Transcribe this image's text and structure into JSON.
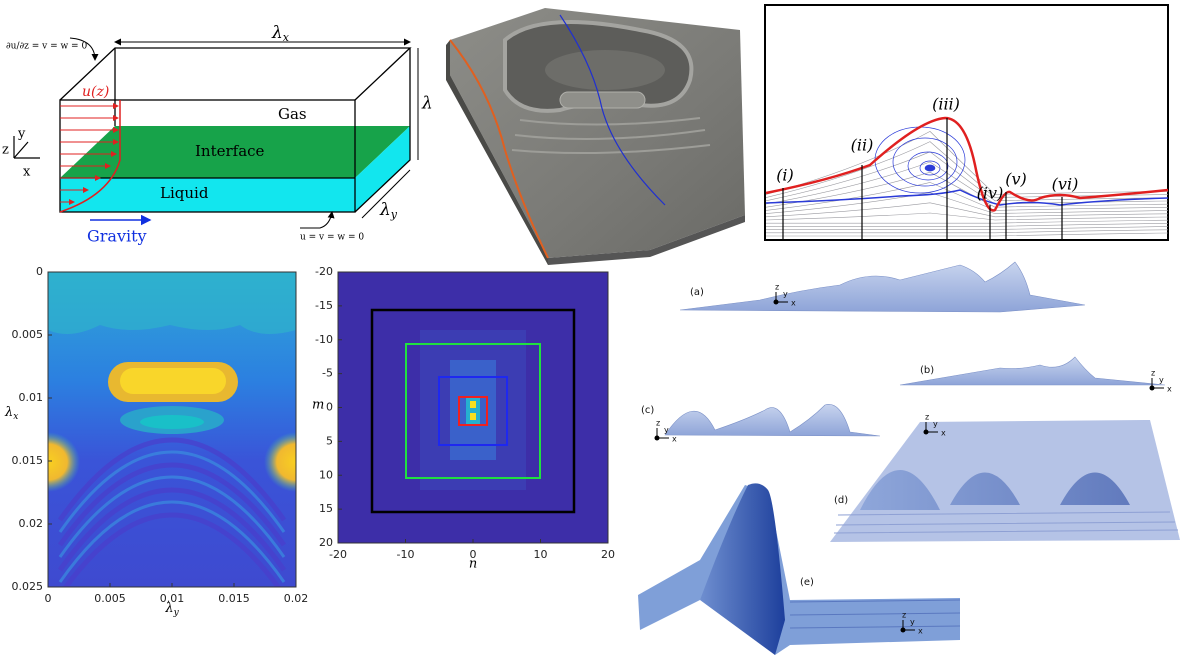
{
  "schematic": {
    "top_bc": "∂u/∂z = v = w = 0",
    "bottom_bc": "u = v = w = 0",
    "length_x": {
      "symbol": "λ",
      "sub": "x"
    },
    "length_y": {
      "symbol": "λ",
      "sub": "y"
    },
    "height": "λ",
    "profile": "u(z)",
    "gas": "Gas",
    "interface": "Interface",
    "liquid": "Liquid",
    "gravity": "Gravity",
    "axes": [
      "z",
      "y",
      "x"
    ]
  },
  "streamlines": {
    "stations": [
      "(i)",
      "(ii)",
      "(iii)",
      "(iv)",
      "(v)",
      "(vi)"
    ]
  },
  "heatmap": {
    "xlabel": {
      "symbol": "λ",
      "sub": "y"
    },
    "ylabel": {
      "symbol": "λ",
      "sub": "x"
    },
    "xlim": [
      0,
      0.02
    ],
    "ylim": [
      0,
      0.025
    ],
    "xticks": [
      0,
      0.005,
      0.01,
      0.015,
      0.02
    ],
    "yticks": [
      0,
      0.005,
      0.01,
      0.015,
      0.02,
      0.025
    ]
  },
  "spectrum": {
    "xlabel": "n",
    "ylabel": "m",
    "xlim": [
      -20,
      20
    ],
    "ylim": [
      -20,
      20
    ],
    "xticks": [
      -20,
      -10,
      0,
      10,
      20
    ],
    "yticks": [
      -20,
      -15,
      -10,
      -5,
      0,
      5,
      10,
      15,
      20
    ]
  },
  "renders": [
    {
      "label": "(a)",
      "axes": [
        "z",
        "y",
        "x"
      ]
    },
    {
      "label": "(b)",
      "axes": [
        "z",
        "y",
        "x"
      ]
    },
    {
      "label": "(c)",
      "axes": [
        "z",
        "y",
        "x"
      ]
    },
    {
      "label": "(d)",
      "axes": [
        "z",
        "y",
        "x"
      ]
    },
    {
      "label": "(e)",
      "axes": [
        "z",
        "y",
        "x"
      ]
    }
  ]
}
